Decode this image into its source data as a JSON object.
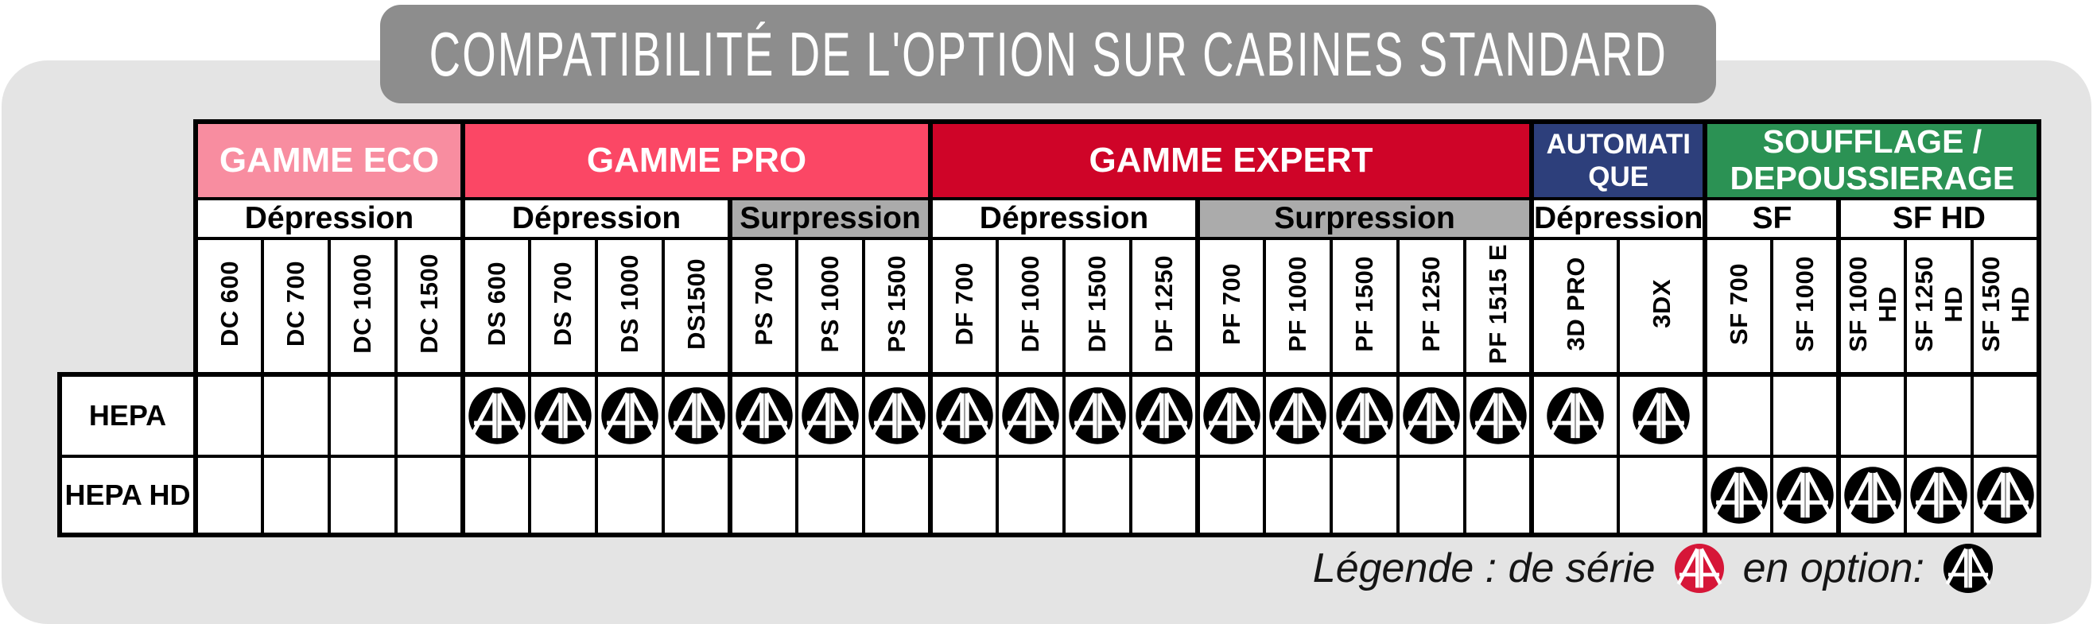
{
  "title": "COMPATIBILITÉ DE L'OPTION SUR CABINES STANDARD",
  "colors": {
    "panel_gray": "#E4E4E4",
    "banner_gray": "#8D8D8D",
    "gamme_eco_pink": "#F88DA0",
    "gamme_pro_rose": "#FB4765",
    "gamme_expert_red": "#CF0428",
    "automatique_navy": "#2D3F7B",
    "soufflage_green": "#2B9254",
    "surpression_gray": "#ABABAB",
    "legend_serie_red": "#D61638",
    "legend_option_black": "#000000"
  },
  "table": {
    "groups": [
      {
        "label": "GAMME ECO",
        "color": "#F88DA0",
        "subgroups": [
          {
            "label": "Dépression",
            "bg": "#FFFFFF",
            "models": [
              "DC 600",
              "DC 700",
              "DC 1000",
              "DC 1500"
            ]
          }
        ]
      },
      {
        "label": "GAMME PRO",
        "color": "#FB4765",
        "subgroups": [
          {
            "label": "Dépression",
            "bg": "#FFFFFF",
            "models": [
              "DS 600",
              "DS 700",
              "DS 1000",
              "DS1500"
            ]
          },
          {
            "label": "Surpression",
            "bg": "#ABABAB",
            "models": [
              "PS 700",
              "PS 1000",
              "PS 1500"
            ]
          }
        ]
      },
      {
        "label": "GAMME EXPERT",
        "color": "#CF0428",
        "subgroups": [
          {
            "label": "Dépression",
            "bg": "#FFFFFF",
            "models": [
              "DF 700",
              "DF 1000",
              "DF 1500",
              "DF 1250"
            ]
          },
          {
            "label": "Surpression",
            "bg": "#ABABAB",
            "models": [
              "PF 700",
              "PF 1000",
              "PF 1500",
              "PF 1250",
              "PF 1515 E"
            ]
          }
        ]
      },
      {
        "label": "AUTOMATIQUE",
        "color": "#2D3F7B",
        "subgroups": [
          {
            "label": "Dépression",
            "bg": "#FFFFFF",
            "models": [
              "3D PRO",
              "3DX"
            ]
          }
        ]
      },
      {
        "label": "SOUFFLAGE / DEPOUSSIERAGE",
        "color": "#2B9254",
        "subgroups": [
          {
            "label": "SF",
            "bg": "#FFFFFF",
            "models": [
              "SF 700",
              "SF 1000"
            ]
          },
          {
            "label": "SF HD",
            "bg": "#FFFFFF",
            "models": [
              "SF 1000\nHD",
              "SF 1250\nHD",
              "SF 1500\nHD"
            ]
          }
        ]
      }
    ],
    "rows": [
      {
        "label": "HEPA",
        "cells": [
          0,
          0,
          0,
          0,
          1,
          1,
          1,
          1,
          1,
          1,
          1,
          1,
          1,
          1,
          1,
          1,
          1,
          1,
          1,
          1,
          1,
          1,
          0,
          0,
          0,
          0,
          0
        ]
      },
      {
        "label": "HEPA HD",
        "cells": [
          0,
          0,
          0,
          0,
          0,
          0,
          0,
          0,
          0,
          0,
          0,
          0,
          0,
          0,
          0,
          0,
          0,
          0,
          0,
          0,
          0,
          0,
          1,
          1,
          1,
          1,
          1
        ]
      }
    ]
  },
  "legend": {
    "prefix": "Légende : de série",
    "option_label": "en option:",
    "serie_color": "#D61638",
    "option_color": "#000000",
    "logo_icon": "brand-AA-monogram"
  }
}
